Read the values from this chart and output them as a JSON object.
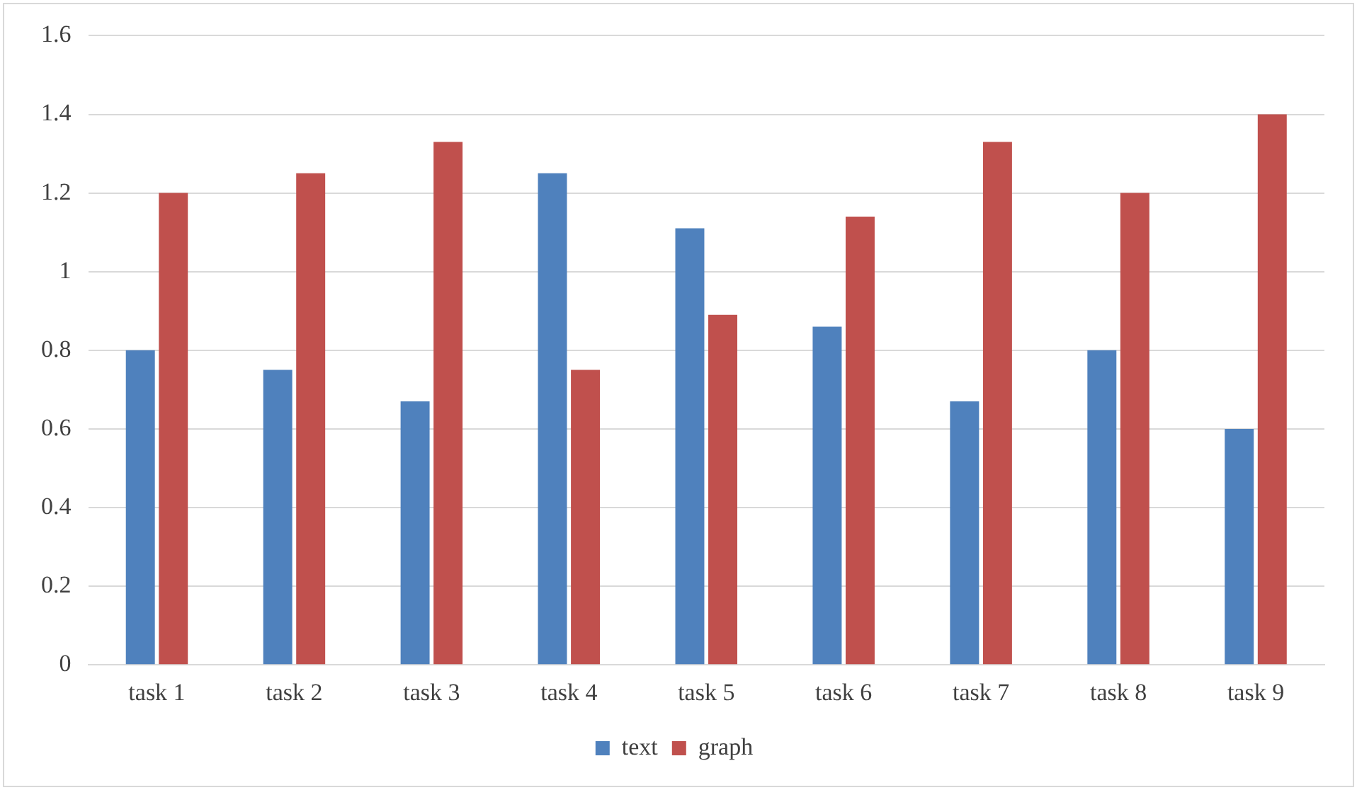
{
  "chart_data": {
    "type": "bar",
    "categories": [
      "task 1",
      "task 2",
      "task 3",
      "task 4",
      "task 5",
      "task 6",
      "task 7",
      "task 8",
      "task 9"
    ],
    "series": [
      {
        "name": "text",
        "color": "#4f81bd",
        "values": [
          0.8,
          0.75,
          0.67,
          1.25,
          1.11,
          0.86,
          0.67,
          0.8,
          0.6
        ]
      },
      {
        "name": "graph",
        "color": "#c0504d",
        "values": [
          1.2,
          1.25,
          1.33,
          0.75,
          0.89,
          1.14,
          1.33,
          1.2,
          1.4
        ]
      }
    ],
    "ylim": [
      0,
      1.6
    ],
    "yticks": [
      0,
      0.2,
      0.4,
      0.6,
      0.8,
      1,
      1.2,
      1.4,
      1.6
    ],
    "grid": "y",
    "legend": "bottom"
  }
}
